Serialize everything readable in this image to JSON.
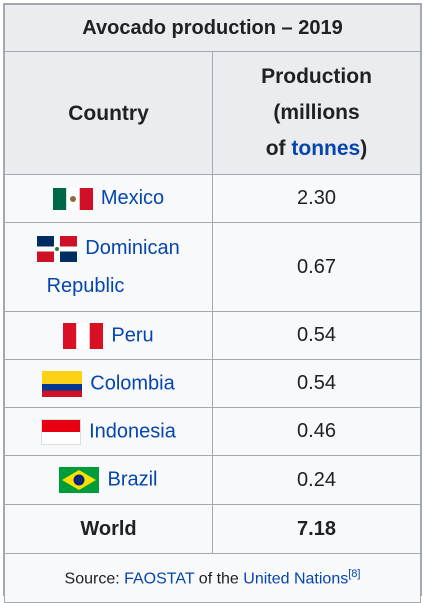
{
  "table": {
    "caption": "Avocado production – 2019",
    "header": {
      "country": "Country",
      "production_line1": "Production",
      "production_line2": "(millions",
      "production_line3_prefix": "of",
      "production_line3_link": "tonnes",
      "production_line3_suffix": ")"
    },
    "rows": [
      {
        "country": "Mexico",
        "value": "2.30"
      },
      {
        "country_line1": "Dominican",
        "country_line2": "Republic",
        "value": "0.67"
      },
      {
        "country": "Peru",
        "value": "0.54"
      },
      {
        "country": "Colombia",
        "value": "0.54"
      },
      {
        "country": "Indonesia",
        "value": "0.46"
      },
      {
        "country": "Brazil",
        "value": "0.24"
      }
    ],
    "total": {
      "label": "World",
      "value": "7.18"
    },
    "source": {
      "prefix": "Source:",
      "link1": "FAOSTAT",
      "middle": "of the",
      "link2": "United Nations",
      "ref": "[8]"
    }
  },
  "colors": {
    "link": "#0645ad",
    "border": "#a2a9b1",
    "header_bg": "#eaecf0",
    "cell_bg": "#f8f9fa"
  }
}
